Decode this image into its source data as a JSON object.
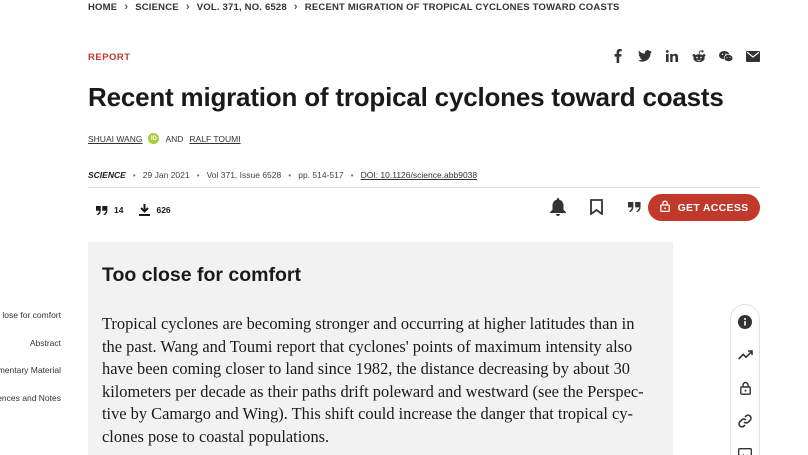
{
  "breadcrumb": [
    "HOME",
    "SCIENCE",
    "VOL. 371, NO. 6528",
    "RECENT MIGRATION OF TROPICAL CYCLONES TOWARD COASTS"
  ],
  "article": {
    "type_label": "REPORT",
    "title": "Recent migration of tropical cyclones toward coasts",
    "authors": [
      "SHUAI WANG",
      "RALF TOUMI"
    ],
    "author_join": "AND",
    "orcid_label": "iD",
    "journal": "SCIENCE",
    "date": "29 Jan 2021",
    "volume_issue": "Vol 371, Issue 6528",
    "pages": "pp. 514-517",
    "doi": "DOI: 10.1126/science.abb9038"
  },
  "metrics": {
    "citations": "14",
    "downloads": "626"
  },
  "actions": {
    "get_access_label": "GET ACCESS"
  },
  "summary": {
    "heading": "Too close for comfort",
    "lines": [
      "Tropical cyclones are becoming stronger and occurring at higher latitudes than in",
      "the past. Wang and Toumi report that cyclones' points of maximum intensity also",
      "have been coming closer to land since 1982, the distance decreasing by about 30",
      "kilometers per decade as their paths drift poleward and westward (see the Perspec-",
      "tive by Camargo and Wing). This shift could increase the danger that tropical cy-",
      "clones pose to coastal populations."
    ]
  },
  "toc": [
    "lose for comfort",
    "Abstract",
    "ementary Material",
    "ences and Notes"
  ],
  "share_icons": [
    "facebook-icon",
    "twitter-icon",
    "linkedin-icon",
    "reddit-icon",
    "wechat-icon",
    "email-icon"
  ],
  "side_icons": [
    "info-icon",
    "trending-icon",
    "lock-icon",
    "link-icon",
    "image-icon"
  ],
  "colors": {
    "accent": "#c0392b",
    "summary_bg": "#f2f2f2",
    "orcid": "#a6ce39"
  }
}
